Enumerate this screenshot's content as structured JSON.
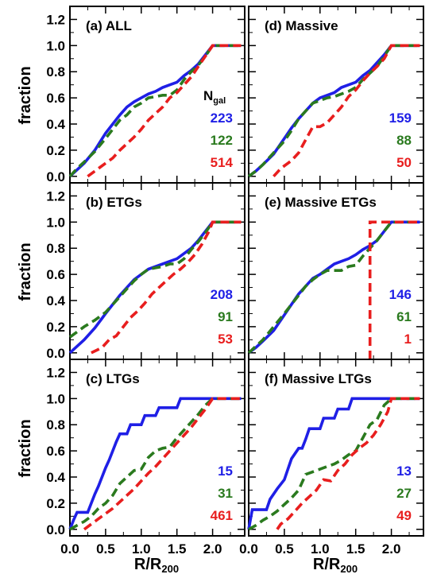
{
  "figure": {
    "xlabel": "R/R200",
    "xlabel_main": "R/R",
    "xlabel_sub": "200",
    "ylabel": "fraction",
    "ngal_main": "N",
    "ngal_sub": "gal",
    "ngal_label": "Ngal"
  },
  "chart_data": [
    {
      "type": "line",
      "title": "(a) ALL",
      "xlim": [
        0,
        2.45
      ],
      "ylim": [
        -0.05,
        1.3
      ],
      "xticks": [
        "0.0",
        "0.5",
        "1.0",
        "1.5",
        "2.0"
      ],
      "yticks": [
        "0.0",
        "0.2",
        "0.4",
        "0.6",
        "0.8",
        "1.0",
        "1.2"
      ],
      "series": [
        {
          "color": "#1f1fe6",
          "style": "solid",
          "count": "223",
          "x": [
            0,
            0.1,
            0.2,
            0.35,
            0.5,
            0.6,
            0.7,
            0.8,
            0.9,
            1.0,
            1.1,
            1.2,
            1.3,
            1.4,
            1.5,
            1.6,
            1.7,
            1.8,
            1.9,
            2.0,
            2.4
          ],
          "y": [
            0,
            0.05,
            0.1,
            0.2,
            0.33,
            0.4,
            0.47,
            0.53,
            0.57,
            0.6,
            0.63,
            0.65,
            0.68,
            0.7,
            0.72,
            0.77,
            0.81,
            0.86,
            0.93,
            1.0,
            1.0
          ]
        },
        {
          "color": "#2a7a1e",
          "style": "dash",
          "count": "122",
          "x": [
            0,
            0.1,
            0.2,
            0.35,
            0.5,
            0.6,
            0.7,
            0.8,
            0.9,
            1.0,
            1.1,
            1.2,
            1.3,
            1.4,
            1.5,
            1.6,
            1.7,
            1.8,
            1.9,
            2.0,
            2.4
          ],
          "y": [
            0,
            0.06,
            0.11,
            0.19,
            0.29,
            0.36,
            0.43,
            0.47,
            0.53,
            0.56,
            0.6,
            0.61,
            0.62,
            0.62,
            0.66,
            0.74,
            0.8,
            0.85,
            0.92,
            1.0,
            1.0
          ]
        },
        {
          "color": "#e81e1e",
          "style": "dash",
          "count": "514",
          "x": [
            0.25,
            0.4,
            0.5,
            0.6,
            0.7,
            0.8,
            0.9,
            1.0,
            1.1,
            1.2,
            1.3,
            1.4,
            1.5,
            1.6,
            1.7,
            1.8,
            1.9,
            2.0,
            2.4
          ],
          "y": [
            0,
            0.06,
            0.1,
            0.14,
            0.2,
            0.25,
            0.3,
            0.36,
            0.43,
            0.48,
            0.53,
            0.6,
            0.64,
            0.7,
            0.76,
            0.84,
            0.92,
            1.0,
            1.0
          ]
        }
      ]
    },
    {
      "type": "line",
      "title": "(d) Massive",
      "xlim": [
        0,
        2.45
      ],
      "ylim": [
        -0.05,
        1.3
      ],
      "xticks": [
        "0.0",
        "0.5",
        "1.0",
        "1.5",
        "2.0"
      ],
      "yticks": [
        "0.0",
        "0.2",
        "0.4",
        "0.6",
        "0.8",
        "1.0",
        "1.2"
      ],
      "series": [
        {
          "color": "#1f1fe6",
          "style": "solid",
          "count": "159",
          "x": [
            0,
            0.1,
            0.2,
            0.35,
            0.5,
            0.6,
            0.7,
            0.8,
            0.9,
            1.0,
            1.1,
            1.2,
            1.3,
            1.4,
            1.5,
            1.6,
            1.7,
            1.8,
            1.9,
            2.0,
            2.4
          ],
          "y": [
            0,
            0.04,
            0.09,
            0.17,
            0.29,
            0.37,
            0.44,
            0.5,
            0.56,
            0.6,
            0.62,
            0.64,
            0.68,
            0.7,
            0.72,
            0.77,
            0.81,
            0.87,
            0.93,
            1.0,
            1.0
          ]
        },
        {
          "color": "#2a7a1e",
          "style": "dash",
          "count": "88",
          "x": [
            0,
            0.1,
            0.2,
            0.35,
            0.5,
            0.6,
            0.7,
            0.8,
            0.9,
            1.0,
            1.1,
            1.2,
            1.3,
            1.4,
            1.5,
            1.6,
            1.7,
            1.8,
            1.9,
            2.0,
            2.4
          ],
          "y": [
            0,
            0.04,
            0.09,
            0.18,
            0.27,
            0.35,
            0.44,
            0.5,
            0.56,
            0.58,
            0.6,
            0.61,
            0.63,
            0.65,
            0.68,
            0.74,
            0.79,
            0.84,
            0.92,
            1.0,
            1.0
          ]
        },
        {
          "color": "#e81e1e",
          "style": "dash",
          "count": "50",
          "x": [
            0.35,
            0.45,
            0.55,
            0.6,
            0.7,
            0.8,
            0.9,
            1.0,
            1.1,
            1.2,
            1.3,
            1.4,
            1.5,
            1.6,
            1.7,
            1.8,
            1.9,
            2.0,
            2.4
          ],
          "y": [
            0,
            0.06,
            0.1,
            0.12,
            0.18,
            0.28,
            0.38,
            0.38,
            0.41,
            0.47,
            0.53,
            0.61,
            0.66,
            0.73,
            0.79,
            0.84,
            0.9,
            1.0,
            1.0
          ]
        }
      ]
    },
    {
      "type": "line",
      "title": "(b) ETGs",
      "xlim": [
        0,
        2.45
      ],
      "ylim": [
        -0.05,
        1.3
      ],
      "xticks": [
        "0.0",
        "0.5",
        "1.0",
        "1.5",
        "2.0"
      ],
      "yticks": [
        "0.0",
        "0.2",
        "0.4",
        "0.6",
        "0.8",
        "1.0",
        "1.2"
      ],
      "series": [
        {
          "color": "#1f1fe6",
          "style": "solid",
          "count": "208",
          "x": [
            0,
            0.1,
            0.2,
            0.35,
            0.5,
            0.6,
            0.7,
            0.8,
            0.9,
            1.0,
            1.1,
            1.2,
            1.3,
            1.4,
            1.5,
            1.6,
            1.7,
            1.8,
            1.9,
            2.0,
            2.4
          ],
          "y": [
            0,
            0.05,
            0.1,
            0.19,
            0.3,
            0.37,
            0.44,
            0.5,
            0.56,
            0.6,
            0.64,
            0.66,
            0.68,
            0.7,
            0.72,
            0.76,
            0.8,
            0.86,
            0.93,
            1.0,
            1.0
          ]
        },
        {
          "color": "#2a7a1e",
          "style": "dash",
          "count": "91",
          "x": [
            0,
            0.1,
            0.2,
            0.35,
            0.5,
            0.6,
            0.7,
            0.8,
            0.9,
            1.0,
            1.1,
            1.2,
            1.3,
            1.4,
            1.5,
            1.6,
            1.7,
            1.8,
            1.9,
            2.0,
            2.4
          ],
          "y": [
            0.12,
            0.16,
            0.2,
            0.25,
            0.31,
            0.37,
            0.43,
            0.49,
            0.55,
            0.6,
            0.64,
            0.65,
            0.66,
            0.68,
            0.68,
            0.72,
            0.79,
            0.85,
            0.92,
            1.0,
            1.0
          ]
        },
        {
          "color": "#e81e1e",
          "style": "dash",
          "count": "53",
          "x": [
            0.3,
            0.45,
            0.55,
            0.65,
            0.75,
            0.85,
            0.95,
            1.05,
            1.15,
            1.25,
            1.35,
            1.45,
            1.55,
            1.65,
            1.75,
            1.85,
            1.95,
            2.0,
            2.4
          ],
          "y": [
            0,
            0.04,
            0.1,
            0.13,
            0.2,
            0.27,
            0.32,
            0.38,
            0.45,
            0.5,
            0.55,
            0.6,
            0.64,
            0.69,
            0.75,
            0.83,
            0.93,
            1.0,
            1.0
          ]
        }
      ]
    },
    {
      "type": "line",
      "title": "(e) Massive ETGs",
      "xlim": [
        0,
        2.45
      ],
      "ylim": [
        -0.05,
        1.3
      ],
      "xticks": [
        "0.0",
        "0.5",
        "1.0",
        "1.5",
        "2.0"
      ],
      "yticks": [
        "0.0",
        "0.2",
        "0.4",
        "0.6",
        "0.8",
        "1.0",
        "1.2"
      ],
      "series": [
        {
          "color": "#1f1fe6",
          "style": "solid",
          "count": "146",
          "x": [
            0,
            0.1,
            0.2,
            0.35,
            0.5,
            0.6,
            0.7,
            0.8,
            0.9,
            1.0,
            1.1,
            1.2,
            1.3,
            1.4,
            1.5,
            1.6,
            1.7,
            1.8,
            1.9,
            2.0,
            2.4
          ],
          "y": [
            0,
            0.04,
            0.09,
            0.17,
            0.29,
            0.37,
            0.45,
            0.51,
            0.57,
            0.6,
            0.64,
            0.68,
            0.7,
            0.72,
            0.75,
            0.79,
            0.82,
            0.86,
            0.93,
            1.0,
            1.0
          ]
        },
        {
          "color": "#2a7a1e",
          "style": "dash",
          "count": "61",
          "x": [
            0,
            0.1,
            0.2,
            0.35,
            0.5,
            0.6,
            0.7,
            0.8,
            0.9,
            1.0,
            1.1,
            1.2,
            1.3,
            1.4,
            1.5,
            1.6,
            1.7,
            1.8,
            1.9,
            2.0,
            2.4
          ],
          "y": [
            0,
            0.05,
            0.1,
            0.2,
            0.3,
            0.37,
            0.44,
            0.51,
            0.56,
            0.6,
            0.63,
            0.63,
            0.63,
            0.66,
            0.67,
            0.74,
            0.8,
            0.86,
            0.93,
            1.0,
            1.0
          ]
        },
        {
          "color": "#e81e1e",
          "style": "dash",
          "count": "1",
          "x": [
            1.7,
            1.7,
            2.4
          ],
          "y": [
            -0.05,
            1.0,
            1.0
          ]
        }
      ]
    },
    {
      "type": "line",
      "title": "(c) LTGs",
      "xlim": [
        0,
        2.45
      ],
      "ylim": [
        -0.05,
        1.3
      ],
      "xticks": [
        "0.0",
        "0.5",
        "1.0",
        "1.5",
        "2.0"
      ],
      "yticks": [
        "0.0",
        "0.2",
        "0.4",
        "0.6",
        "0.8",
        "1.0",
        "1.2"
      ],
      "series": [
        {
          "color": "#1f1fe6",
          "style": "solid",
          "count": "15",
          "x": [
            0,
            0.05,
            0.1,
            0.25,
            0.3,
            0.35,
            0.4,
            0.45,
            0.5,
            0.55,
            0.6,
            0.65,
            0.7,
            0.75,
            0.8,
            0.85,
            1.0,
            1.05,
            1.2,
            1.25,
            1.5,
            1.55,
            1.85,
            1.9,
            2.4
          ],
          "y": [
            0,
            0.07,
            0.13,
            0.13,
            0.2,
            0.27,
            0.33,
            0.4,
            0.47,
            0.53,
            0.6,
            0.67,
            0.73,
            0.73,
            0.73,
            0.8,
            0.8,
            0.87,
            0.87,
            0.93,
            0.93,
            1.0,
            1.0,
            1.0,
            1.0
          ]
        },
        {
          "color": "#2a7a1e",
          "style": "dash",
          "count": "31",
          "x": [
            0,
            0.1,
            0.2,
            0.3,
            0.4,
            0.5,
            0.6,
            0.7,
            0.8,
            0.9,
            1.0,
            1.1,
            1.2,
            1.3,
            1.4,
            1.5,
            1.6,
            1.7,
            1.8,
            1.9,
            2.0,
            2.4
          ],
          "y": [
            0,
            0.03,
            0.06,
            0.1,
            0.16,
            0.2,
            0.26,
            0.35,
            0.4,
            0.45,
            0.46,
            0.55,
            0.6,
            0.62,
            0.63,
            0.7,
            0.76,
            0.82,
            0.88,
            0.95,
            1.0,
            1.0
          ]
        },
        {
          "color": "#e81e1e",
          "style": "dash",
          "count": "461",
          "x": [
            0.2,
            0.3,
            0.4,
            0.5,
            0.6,
            0.7,
            0.8,
            0.9,
            1.0,
            1.1,
            1.2,
            1.3,
            1.4,
            1.5,
            1.6,
            1.7,
            1.8,
            1.9,
            2.0,
            2.4
          ],
          "y": [
            0,
            0.04,
            0.08,
            0.12,
            0.16,
            0.21,
            0.26,
            0.31,
            0.37,
            0.43,
            0.48,
            0.54,
            0.6,
            0.66,
            0.72,
            0.78,
            0.85,
            0.92,
            1.0,
            1.0
          ]
        }
      ]
    },
    {
      "type": "line",
      "title": "(f) Massive LTGs",
      "xlim": [
        0,
        2.45
      ],
      "ylim": [
        -0.05,
        1.3
      ],
      "xticks": [
        "0.0",
        "0.5",
        "1.0",
        "1.5",
        "2.0"
      ],
      "yticks": [
        "0.0",
        "0.2",
        "0.4",
        "0.6",
        "0.8",
        "1.0",
        "1.2"
      ],
      "series": [
        {
          "color": "#1f1fe6",
          "style": "solid",
          "count": "13",
          "x": [
            0,
            0.05,
            0.25,
            0.3,
            0.4,
            0.5,
            0.55,
            0.6,
            0.7,
            0.75,
            0.8,
            0.85,
            1.0,
            1.05,
            1.2,
            1.25,
            1.4,
            1.45,
            1.7,
            1.75,
            2.0,
            2.4
          ],
          "y": [
            0,
            0.15,
            0.15,
            0.23,
            0.31,
            0.38,
            0.46,
            0.54,
            0.62,
            0.62,
            0.69,
            0.77,
            0.77,
            0.85,
            0.85,
            0.92,
            0.92,
            1.0,
            1.0,
            1.0,
            1.0,
            1.0
          ]
        },
        {
          "color": "#2a7a1e",
          "style": "dash",
          "count": "27",
          "x": [
            0,
            0.1,
            0.2,
            0.3,
            0.4,
            0.5,
            0.6,
            0.7,
            0.8,
            0.9,
            1.0,
            1.1,
            1.2,
            1.3,
            1.4,
            1.5,
            1.6,
            1.7,
            1.8,
            1.9,
            2.0,
            2.4
          ],
          "y": [
            0,
            0.03,
            0.07,
            0.1,
            0.14,
            0.19,
            0.24,
            0.3,
            0.42,
            0.44,
            0.46,
            0.48,
            0.5,
            0.53,
            0.57,
            0.6,
            0.7,
            0.8,
            0.84,
            0.95,
            1.0,
            1.0
          ]
        },
        {
          "color": "#e81e1e",
          "style": "dash",
          "count": "49",
          "x": [
            0.4,
            0.45,
            0.55,
            0.65,
            0.75,
            0.85,
            0.95,
            1.05,
            1.15,
            1.25,
            1.35,
            1.45,
            1.55,
            1.65,
            1.75,
            1.85,
            1.95,
            2.0,
            2.4
          ],
          "y": [
            0,
            0.04,
            0.08,
            0.14,
            0.2,
            0.25,
            0.3,
            0.38,
            0.37,
            0.45,
            0.5,
            0.57,
            0.62,
            0.66,
            0.72,
            0.8,
            0.9,
            1.0,
            1.0
          ]
        }
      ]
    }
  ]
}
